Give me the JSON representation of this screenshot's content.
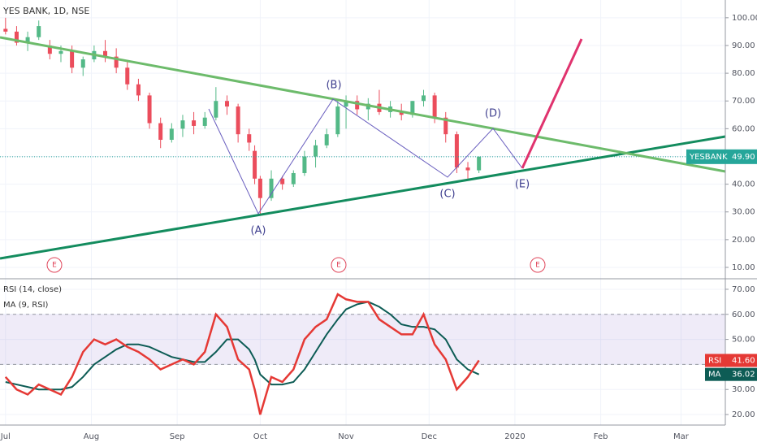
{
  "chart_data": [
    {
      "type": "candlestick",
      "title": "YES BANK, 1D, NSE",
      "x": [
        0,
        4,
        8,
        12,
        16,
        20,
        24,
        28,
        32,
        36,
        40,
        44,
        48,
        52,
        56,
        60,
        64,
        68,
        72,
        76,
        80,
        84,
        88,
        90,
        92,
        96,
        100,
        104,
        108,
        112,
        116,
        120,
        123,
        127,
        131,
        135,
        139,
        143,
        147,
        151,
        155,
        159,
        163,
        167,
        171
      ],
      "open": [
        96,
        95,
        91,
        93,
        90,
        87,
        88,
        82,
        85,
        88,
        86,
        82,
        76,
        72,
        62,
        56,
        60,
        63,
        61,
        64,
        70,
        68,
        58,
        52,
        42,
        35,
        42,
        40,
        44,
        50,
        54,
        58,
        68,
        70,
        67,
        69,
        66,
        66,
        65,
        70,
        72,
        64,
        58,
        46,
        45
      ],
      "high": [
        100,
        97,
        95,
        99,
        92,
        90,
        90,
        86,
        90,
        92,
        89,
        84,
        78,
        73,
        64,
        62,
        65,
        66,
        66,
        75,
        72,
        69,
        60,
        54,
        43,
        45,
        43,
        45,
        52,
        56,
        60,
        70,
        72,
        72,
        71,
        74,
        70,
        69,
        70,
        74,
        73,
        66,
        59,
        48,
        50
      ],
      "low": [
        94,
        90,
        88,
        92,
        85,
        84,
        80,
        79,
        84,
        84,
        80,
        74,
        70,
        60,
        53,
        55,
        57,
        58,
        60,
        63,
        65,
        55,
        52,
        40,
        29,
        34,
        38,
        39,
        43,
        46,
        53,
        57,
        60,
        65,
        63,
        65,
        64,
        63,
        64,
        68,
        62,
        55,
        44,
        42,
        44
      ],
      "close": [
        95,
        91,
        93,
        97,
        87,
        88,
        82,
        85,
        88,
        86,
        82,
        76,
        72,
        62,
        56,
        60,
        63,
        61,
        64,
        70,
        68,
        58,
        55,
        42,
        35,
        42,
        40,
        44,
        50,
        54,
        58,
        68,
        70,
        67,
        69,
        66,
        68,
        65,
        70,
        72,
        64,
        58,
        46,
        45,
        49.9
      ],
      "up_color": "#53b987",
      "down_color": "#eb4d5c",
      "xlim": [
        -2,
        260
      ],
      "xticks": [
        {
          "value": 0,
          "label": "Jul"
        },
        {
          "value": 31,
          "label": "Aug"
        },
        {
          "value": 62,
          "label": "Sep"
        },
        {
          "value": 92,
          "label": "Oct"
        },
        {
          "value": 123,
          "label": "Nov"
        },
        {
          "value": 153,
          "label": "Dec"
        },
        {
          "value": 184,
          "label": "2020"
        },
        {
          "value": 215,
          "label": "Feb"
        },
        {
          "value": 244,
          "label": "Mar"
        }
      ],
      "ylim": [
        5.9,
        106.4
      ],
      "yticks": [
        {
          "value": 10,
          "label": "10.00"
        },
        {
          "value": 20,
          "label": "20.00"
        },
        {
          "value": 30,
          "label": "30.00"
        },
        {
          "value": 40,
          "label": "40.00"
        },
        {
          "value": 50,
          "label": "50.00"
        },
        {
          "value": 60,
          "label": "60.00"
        },
        {
          "value": 70,
          "label": "70.00"
        },
        {
          "value": 80,
          "label": "80.00"
        },
        {
          "value": 90,
          "label": "90.00"
        },
        {
          "value": 100,
          "label": "100.00"
        }
      ],
      "grid": true,
      "symbol": "YESBANK",
      "last_price": 49.9,
      "last_price_label": "49.90",
      "last_color": "#26a69a",
      "annotations": [
        "(A)",
        "(B)",
        "(C)",
        "(D)",
        "(E)"
      ],
      "events": [
        "E",
        "E",
        "E"
      ]
    },
    {
      "type": "line",
      "x": [
        0,
        4,
        8,
        12,
        16,
        20,
        24,
        28,
        32,
        36,
        40,
        44,
        48,
        52,
        56,
        60,
        64,
        68,
        72,
        76,
        80,
        84,
        88,
        90,
        92,
        96,
        100,
        104,
        108,
        112,
        116,
        120,
        123,
        127,
        131,
        135,
        139,
        143,
        147,
        151,
        155,
        159,
        163,
        167,
        171
      ],
      "series": [
        {
          "name": "RSI (14, close)",
          "short": "RSI",
          "color": "#e53935",
          "last_label": "41.60",
          "values": [
            35,
            30,
            28,
            32,
            30,
            28,
            35,
            45,
            50,
            48,
            50,
            47,
            45,
            42,
            38,
            40,
            42,
            40,
            45,
            60,
            55,
            42,
            38,
            30,
            20,
            35,
            33,
            38,
            50,
            55,
            58,
            68,
            66,
            65,
            65,
            58,
            55,
            52,
            52,
            60,
            48,
            42,
            30,
            35,
            41.6
          ]
        },
        {
          "name": "MA (9, RSI)",
          "short": "MA",
          "color": "#0d5c55",
          "last_label": "36.02",
          "values": [
            33,
            32,
            31,
            30,
            30,
            30,
            31,
            35,
            40,
            43,
            46,
            48,
            48,
            47,
            45,
            43,
            42,
            41,
            41,
            45,
            50,
            50,
            46,
            42,
            36,
            32,
            32,
            33,
            38,
            45,
            52,
            58,
            62,
            64,
            65,
            63,
            60,
            56,
            55,
            55,
            54,
            50,
            42,
            38,
            36.02
          ]
        }
      ],
      "band": [
        40,
        60
      ],
      "ylim": [
        15.8,
        74.2
      ],
      "yticks": [
        {
          "value": 20,
          "label": "20.00"
        },
        {
          "value": 30,
          "label": "30.00"
        },
        {
          "value": 40,
          "label": "40.00"
        },
        {
          "value": 50,
          "label": "50.00"
        },
        {
          "value": 60,
          "label": "60.00"
        },
        {
          "value": 70,
          "label": "70.00"
        }
      ],
      "grid": true
    }
  ]
}
